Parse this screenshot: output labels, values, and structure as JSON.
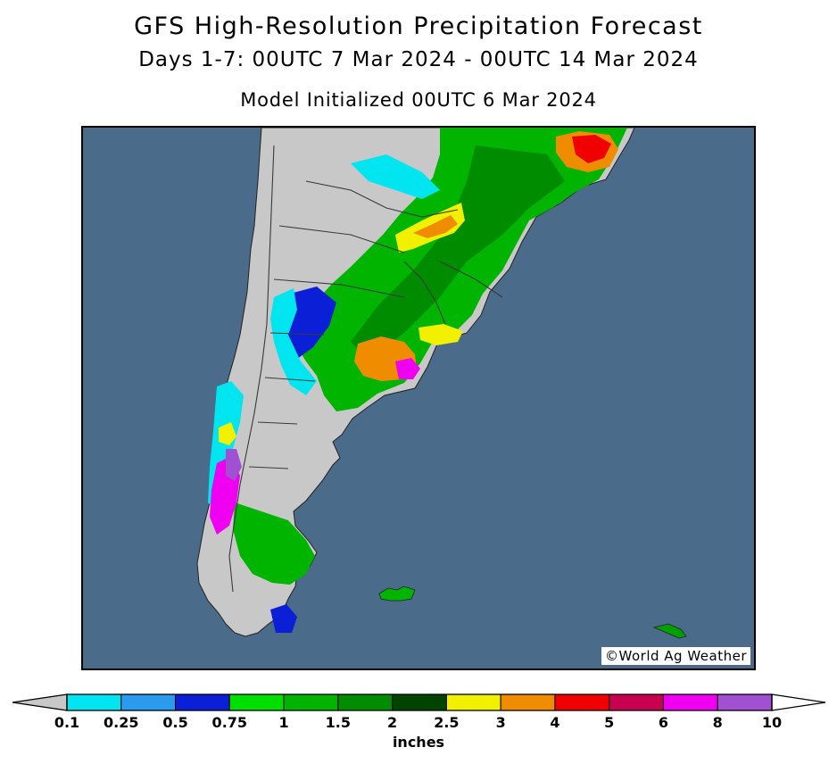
{
  "header": {
    "title": "GFS High-Resolution Precipitation Forecast",
    "subtitle": "Days 1-7: 00UTC 7 Mar 2024 - 00UTC 14 Mar 2024",
    "init": "Model Initialized 00UTC 6 Mar 2024"
  },
  "map": {
    "credit": "©World Ag Weather",
    "colors": {
      "ocean": "#4a6b8a",
      "land": "#c8c8c8",
      "border": "#3a3a3a"
    }
  },
  "legend": {
    "units": "inches",
    "below_color": "#c8c8c8",
    "above_color": "#ffffff",
    "bins": [
      {
        "color": "#00e5f0"
      },
      {
        "color": "#2b9bf0"
      },
      {
        "color": "#0a1fd6"
      },
      {
        "color": "#00e000"
      },
      {
        "color": "#00b400"
      },
      {
        "color": "#008c00"
      },
      {
        "color": "#004400"
      },
      {
        "color": "#f0f000"
      },
      {
        "color": "#f08c00"
      },
      {
        "color": "#f00000"
      },
      {
        "color": "#c80050"
      },
      {
        "color": "#f000f0"
      },
      {
        "color": "#a050d0"
      }
    ],
    "labels": [
      "0.1",
      "0.25",
      "0.5",
      "0.75",
      "1",
      "1.5",
      "2",
      "2.5",
      "3",
      "4",
      "5",
      "6",
      "8",
      "10"
    ]
  }
}
